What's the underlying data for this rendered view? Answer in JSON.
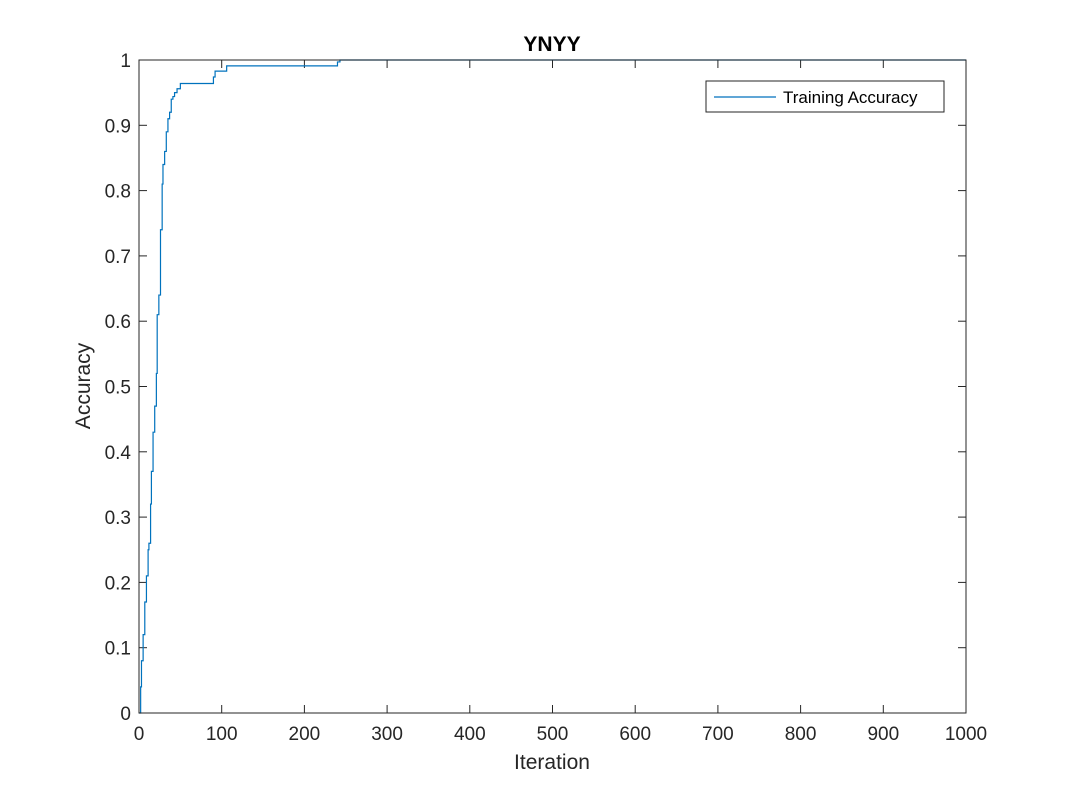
{
  "chart_data": {
    "type": "line",
    "title": "YNYY",
    "xlabel": "Iteration",
    "ylabel": "Accuracy",
    "xlim": [
      0,
      1000
    ],
    "ylim": [
      0,
      1
    ],
    "xticks": [
      0,
      100,
      200,
      300,
      400,
      500,
      600,
      700,
      800,
      900,
      1000
    ],
    "yticks": [
      0,
      0.1,
      0.2,
      0.3,
      0.4,
      0.5,
      0.6,
      0.7,
      0.8,
      0.9,
      1
    ],
    "xtick_labels": [
      "0",
      "100",
      "200",
      "300",
      "400",
      "500",
      "600",
      "700",
      "800",
      "900",
      "1000"
    ],
    "ytick_labels": [
      "0",
      "0.1",
      "0.2",
      "0.3",
      "0.4",
      "0.5",
      "0.6",
      "0.7",
      "0.8",
      "0.9",
      "1"
    ],
    "grid": false,
    "box": true,
    "legend_position": "top-right",
    "series": [
      {
        "name": "Training Accuracy",
        "color": "#0072BD",
        "step": true,
        "x": [
          0,
          2,
          3,
          5,
          7,
          9,
          11,
          12,
          14,
          15,
          17,
          19,
          21,
          22,
          24,
          26,
          28,
          29,
          31,
          33,
          35,
          37,
          39,
          41,
          43,
          46,
          50,
          53,
          90,
          92,
          97,
          100,
          106,
          108,
          110,
          240,
          243,
          1000
        ],
        "y": [
          0,
          0.04,
          0.08,
          0.12,
          0.17,
          0.21,
          0.25,
          0.26,
          0.32,
          0.37,
          0.43,
          0.47,
          0.52,
          0.61,
          0.64,
          0.74,
          0.81,
          0.84,
          0.86,
          0.89,
          0.91,
          0.92,
          0.94,
          0.944,
          0.95,
          0.956,
          0.964,
          0.964,
          0.974,
          0.983,
          0.983,
          0.983,
          0.991,
          0.991,
          0.991,
          0.997,
          1.0,
          1.0
        ]
      }
    ]
  }
}
